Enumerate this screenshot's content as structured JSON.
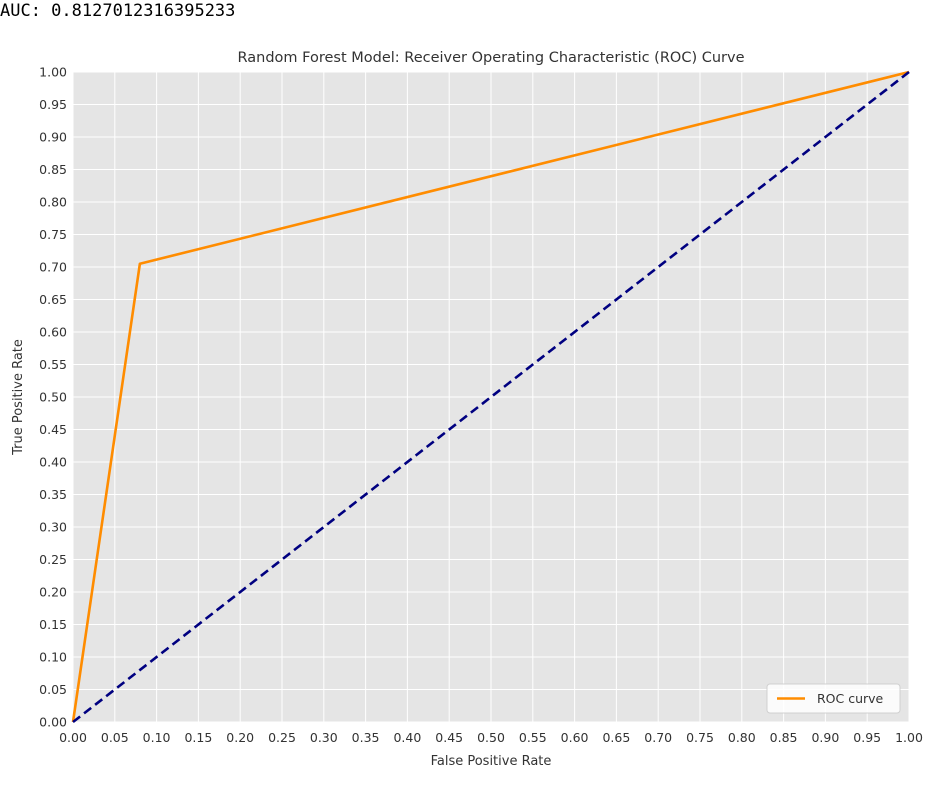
{
  "output": {
    "text": "AUC: 0.8127012316395233"
  },
  "chart_data": {
    "type": "line",
    "title": "Random Forest Model: Receiver Operating Characteristic (ROC) Curve",
    "xlabel": "False Positive Rate",
    "ylabel": "True Positive Rate",
    "xlim": [
      0.0,
      1.0
    ],
    "ylim": [
      0.0,
      1.0
    ],
    "xticks": [
      "0.00",
      "0.05",
      "0.10",
      "0.15",
      "0.20",
      "0.25",
      "0.30",
      "0.35",
      "0.40",
      "0.45",
      "0.50",
      "0.55",
      "0.60",
      "0.65",
      "0.70",
      "0.75",
      "0.80",
      "0.85",
      "0.90",
      "0.95",
      "1.00"
    ],
    "yticks": [
      "0.00",
      "0.05",
      "0.10",
      "0.15",
      "0.20",
      "0.25",
      "0.30",
      "0.35",
      "0.40",
      "0.45",
      "0.50",
      "0.55",
      "0.60",
      "0.65",
      "0.70",
      "0.75",
      "0.80",
      "0.85",
      "0.90",
      "0.95",
      "1.00"
    ],
    "grid": true,
    "legend_position": "lower-right",
    "series": [
      {
        "name": "ROC curve",
        "color": "#ff8c00",
        "style": "solid",
        "x": [
          0.0,
          0.08,
          1.0
        ],
        "y": [
          0.0,
          0.705,
          1.0
        ]
      },
      {
        "color": "#000080",
        "style": "dashed",
        "x": [
          0.0,
          1.0
        ],
        "y": [
          0.0,
          1.0
        ]
      }
    ],
    "colors": {
      "plot_background": "#e5e5e5",
      "grid": "#ffffff"
    }
  }
}
